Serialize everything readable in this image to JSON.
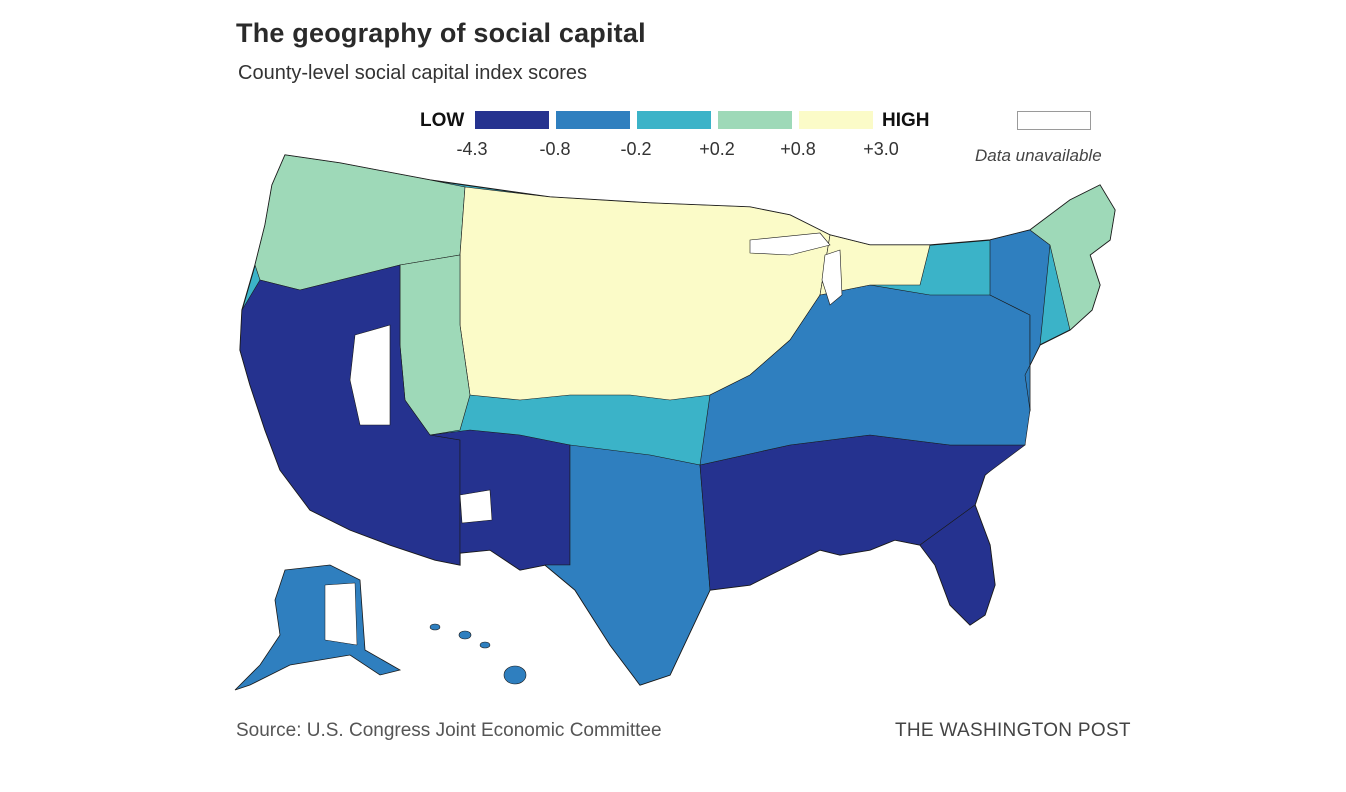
{
  "header": {
    "title": "The geography of social capital",
    "subtitle": "County-level social capital index scores"
  },
  "legend": {
    "low_label": "LOW",
    "high_label": "HIGH",
    "bins": [
      {
        "color": "#25328f",
        "tick": "-4.3"
      },
      {
        "color": "#2f7fbf",
        "tick": "-0.8"
      },
      {
        "color": "#3bb3c8",
        "tick": "-0.2"
      },
      {
        "color": "#9ed9b8",
        "tick": "+0.2"
      },
      {
        "color": "#fbfbc8",
        "tick": "+0.8"
      },
      {
        "color": null,
        "tick": "+3.0"
      }
    ],
    "unavailable_label": "Data unavailable",
    "unavailable_color": "#ffffff"
  },
  "regions": [
    {
      "name": "Pacific Northwest",
      "level": 3
    },
    {
      "name": "Northern Plains & Upper Midwest",
      "level": 4
    },
    {
      "name": "Nevada & Southern California",
      "level": 0
    },
    {
      "name": "Arizona & New Mexico",
      "level": 0
    },
    {
      "name": "Deep South",
      "level": 0
    },
    {
      "name": "Texas",
      "level": 1
    },
    {
      "name": "Northeast",
      "level": 1
    },
    {
      "name": "New England",
      "level": 3
    },
    {
      "name": "Florida",
      "level": 0
    }
  ],
  "footer": {
    "source": "Source: U.S. Congress Joint Economic Committee",
    "credit": "THE WASHINGTON POST"
  }
}
